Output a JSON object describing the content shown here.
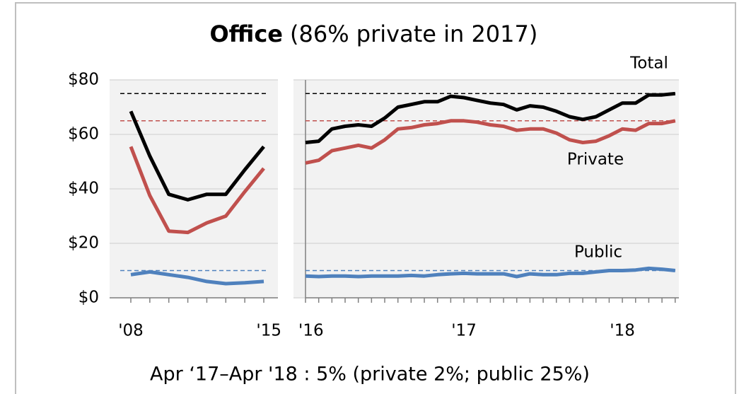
{
  "chart_data": {
    "type": "line",
    "title": "Office",
    "subtitle": "(86% private in 2017)",
    "footer": "Apr ‘17–Apr '18 : 5% (private 2%; public 25%)",
    "ylim": [
      0,
      80
    ],
    "yticks": [
      {
        "value": 0,
        "label": "$0"
      },
      {
        "value": 20,
        "label": "$20"
      },
      {
        "value": 40,
        "label": "$40"
      },
      {
        "value": 60,
        "label": "$60"
      },
      {
        "value": 80,
        "label": "$80"
      }
    ],
    "grid": true,
    "annotations": [
      "Total",
      "Private",
      "Public"
    ],
    "reference_lines": [
      {
        "value": 75,
        "color": "#000000"
      },
      {
        "value": 65,
        "color": "#c0504d"
      },
      {
        "value": 10,
        "color": "#4f81bd"
      }
    ],
    "panels": [
      {
        "categories": [
          "'08",
          null,
          null,
          null,
          null,
          null,
          null,
          "'15"
        ],
        "series": [
          {
            "name": "Total",
            "color": "#000000",
            "values": [
              68.5,
              52,
              38,
              36,
              38,
              38,
              47,
              55.5
            ]
          },
          {
            "name": "Private",
            "color": "#c0504d",
            "values": [
              55.5,
              37.5,
              24.5,
              24,
              27.5,
              30,
              39,
              47.5
            ]
          },
          {
            "name": "Public",
            "color": "#4f81bd",
            "values": [
              8.5,
              9.5,
              8.5,
              7.5,
              6,
              5.2,
              5.5,
              6
            ]
          }
        ]
      },
      {
        "categories": [
          "'16",
          null,
          null,
          null,
          null,
          null,
          null,
          null,
          null,
          null,
          null,
          null,
          "'17",
          null,
          null,
          null,
          null,
          null,
          null,
          null,
          null,
          null,
          null,
          null,
          "'18",
          null,
          null,
          null,
          null
        ],
        "series": [
          {
            "name": "Total",
            "color": "#000000",
            "values": [
              57,
              57.5,
              62,
              63,
              63.5,
              63,
              66,
              70,
              71,
              72,
              72,
              74,
              73.5,
              72.5,
              71.5,
              71,
              69,
              70.5,
              70,
              68.5,
              66.5,
              65.5,
              66.5,
              69,
              71.5,
              71.5,
              74.5,
              74.5,
              75
            ]
          },
          {
            "name": "Private",
            "color": "#c0504d",
            "values": [
              49.5,
              50.5,
              54,
              55,
              56,
              55,
              58,
              62,
              62.5,
              63.5,
              64,
              65,
              65,
              64.5,
              63.5,
              63,
              61.5,
              62,
              62,
              60.5,
              58,
              57,
              57.5,
              59.5,
              62,
              61.5,
              64,
              64,
              65
            ]
          },
          {
            "name": "Public",
            "color": "#4f81bd",
            "values": [
              8,
              7.8,
              8,
              8,
              7.8,
              8,
              8,
              8,
              8.2,
              8,
              8.5,
              8.8,
              9,
              8.8,
              8.8,
              8.8,
              7.8,
              8.8,
              8.5,
              8.5,
              9,
              9,
              9.5,
              10,
              10,
              10.2,
              10.8,
              10.5,
              10
            ]
          }
        ]
      }
    ]
  }
}
